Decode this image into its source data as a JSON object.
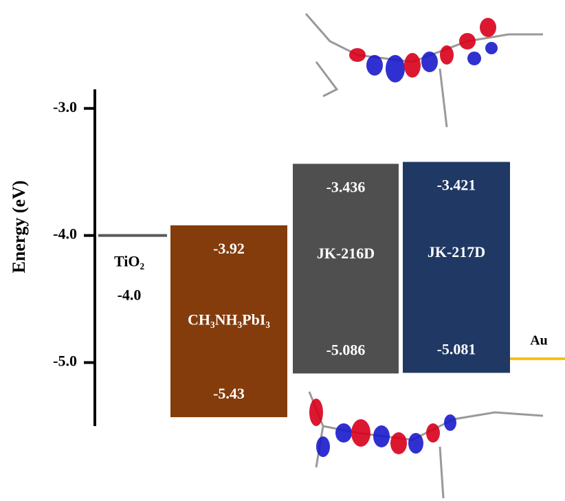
{
  "chart_data": {
    "type": "energy-level",
    "ylabel": "Energy (eV)",
    "ylim": [
      -5.5,
      -2.85
    ],
    "yticks": [
      {
        "value": -3.0,
        "label": "-3.0"
      },
      {
        "value": -4.0,
        "label": "-4.0"
      },
      {
        "value": -5.0,
        "label": "-5.0"
      }
    ],
    "levels": [
      {
        "name": "TiO₂",
        "value": -4.0,
        "value_label": "-4.0",
        "color": "#595959"
      },
      {
        "name": "Au",
        "value": -4.97,
        "color": "#ffc000"
      }
    ],
    "bands": [
      {
        "name": "CH₃NH₃PbI₃",
        "values": [
          -3.92,
          -5.43
        ],
        "color": "#843c0c"
      },
      {
        "name": "JK-216D",
        "values": [
          -3.436,
          -5.086
        ],
        "color": "#4f4f4f"
      },
      {
        "name": "JK-217D",
        "values": [
          -3.421,
          -5.081
        ],
        "color": "#203864"
      }
    ]
  }
}
